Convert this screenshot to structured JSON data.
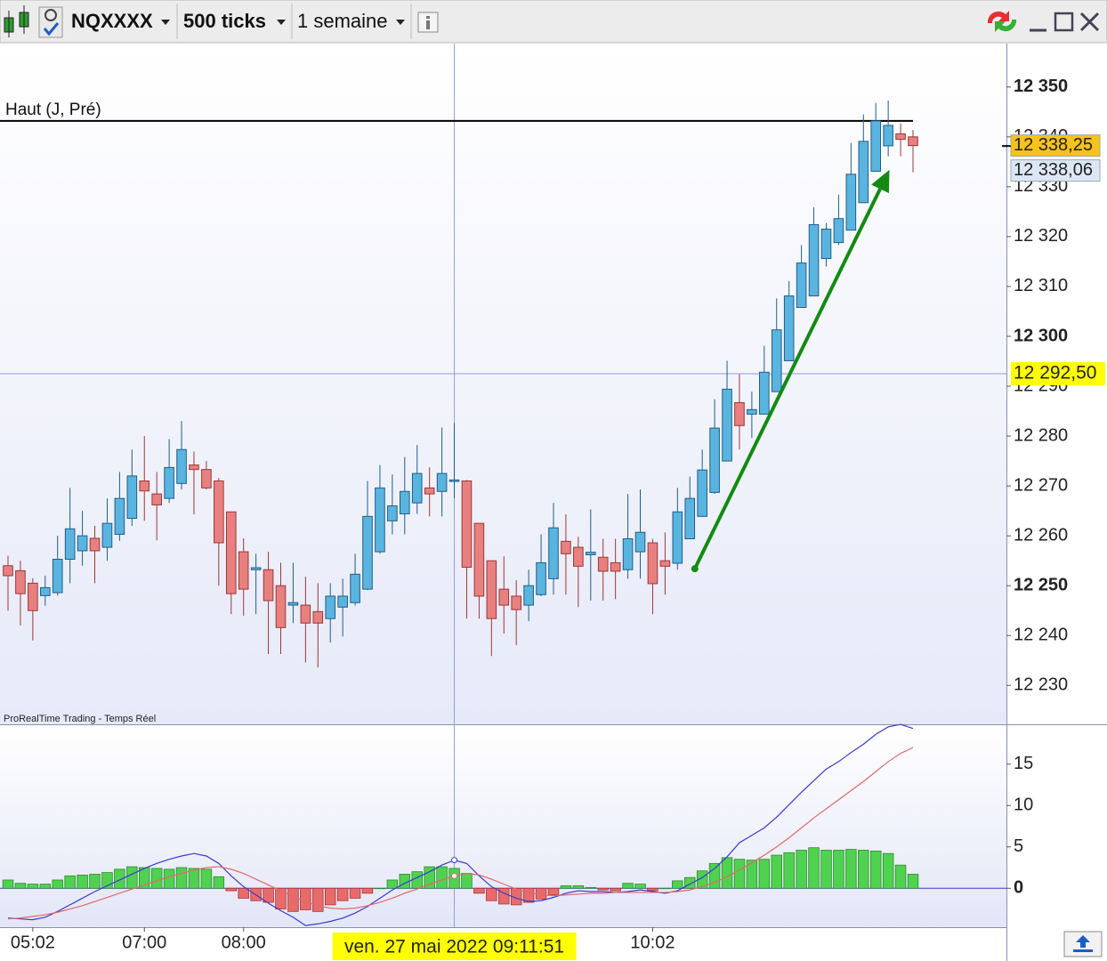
{
  "toolbar": {
    "instrument": "NQXXXX",
    "ticks": "500 ticks",
    "period": "1 semaine"
  },
  "chart_data": [
    {
      "type": "candlestick",
      "source_label": "ProRealTime Trading - Temps Réel",
      "categories": [
        null,
        null,
        "05:02",
        null,
        null,
        null,
        null,
        null,
        null,
        null,
        null,
        "07:00",
        null,
        null,
        null,
        null,
        null,
        null,
        null,
        "08:00",
        null,
        null,
        null,
        null,
        null,
        null,
        null,
        null,
        null,
        null,
        null,
        null,
        null,
        null,
        null,
        null,
        null,
        null,
        null,
        null,
        null,
        null,
        null,
        null,
        null,
        null,
        null,
        null,
        null,
        null,
        null,
        null,
        "10:02",
        null,
        null,
        null,
        null,
        null,
        null,
        null,
        null,
        null,
        null,
        null,
        null,
        null,
        null,
        null,
        null,
        null,
        null,
        null,
        null,
        null
      ],
      "open": [
        12254,
        12253,
        12250.5,
        12248,
        12248.6,
        12255.3,
        12257,
        12259.5,
        12257.7,
        12260.3,
        12263.5,
        12271,
        12268.4,
        12267.5,
        12270.5,
        12274.2,
        12273.3,
        12271,
        12264.8,
        12256.8,
        12253.2,
        12253.2,
        12250,
        12246.1,
        12246.1,
        12244.8,
        12243.4,
        12245.7,
        12246.6,
        12249.3,
        12256.8,
        12263,
        12264.4,
        12266.6,
        12269.6,
        12268.9,
        12270.9,
        12271,
        12262.5,
        12255,
        12249.3,
        12247.9,
        12246.1,
        12248.2,
        12251.4,
        12258.9,
        12257.7,
        12256.2,
        12255.7,
        12254.6,
        12253.2,
        12256.8,
        12258.6,
        12255,
        12254.5,
        12259.4,
        12263.9,
        12268.7,
        12275,
        12286.7,
        12284.4,
        12284.4,
        12288.9,
        12295.1,
        12305.8,
        12308.1,
        12315.6,
        12318.8,
        12321.3,
        12326.8,
        12333.1,
        12338.2,
        12340.6,
        12340
      ],
      "high": [
        12256,
        12255,
        12251.5,
        12252,
        12260,
        12269.6,
        12265,
        12262,
        12267.5,
        12272.8,
        12277.3,
        12280,
        12272.8,
        12279.4,
        12283,
        12276.9,
        12275,
        12271.6,
        12264.8,
        12259.5,
        12256.4,
        12256.8,
        12254.6,
        12254.6,
        12251.8,
        12250.5,
        12250.5,
        12251.4,
        12256.4,
        12271,
        12274.2,
        12272.3,
        12275.8,
        12278.2,
        12273.7,
        12281.7,
        12282.6,
        12271.2,
        12262.5,
        12255,
        12255.9,
        12251.1,
        12253.2,
        12260.3,
        12266.6,
        12264.3,
        12259.8,
        12265.3,
        12259.4,
        12259.4,
        12268.4,
        12269.3,
        12259.4,
        12260.7,
        12269.6,
        12271.9,
        12277.3,
        12287.4,
        12295.1,
        12292.4,
        12288.9,
        12298.1,
        12307.6,
        12311.1,
        12318.3,
        12325.9,
        12322.7,
        12328.4,
        12338.8,
        12344.5,
        12346.8,
        12347.3,
        12342.7,
        12341.4
      ],
      "low": [
        12245,
        12242,
        12239,
        12246,
        12248,
        12250.5,
        12254,
        12250.5,
        12255,
        12259,
        12262,
        12263,
        12259.1,
        12266.6,
        12269.3,
        12264.3,
        12269.3,
        12250,
        12244.3,
        12244,
        12244.3,
        12236.3,
        12236.3,
        12242.5,
        12234.6,
        12233.6,
        12238.6,
        12239.8,
        12246,
        12249.1,
        12256.4,
        12260.3,
        12260.3,
        12264.4,
        12263.9,
        12263.9,
        12267.5,
        12243.4,
        12243.4,
        12235.9,
        12240.4,
        12238.1,
        12242.9,
        12247.9,
        12248.2,
        12248.2,
        12245.7,
        12247,
        12247,
        12247.3,
        12251.4,
        12251.4,
        12244.3,
        12248.2,
        12253.2,
        12259.4,
        12263.9,
        12268.4,
        12275,
        12277.3,
        12279.6,
        12284.4,
        12288.9,
        12295.1,
        12305.8,
        12308.1,
        12314,
        12318.3,
        12321.3,
        12326.8,
        12333.1,
        12336.1,
        12336.1,
        12332.9
      ],
      "close": [
        12252,
        12248.4,
        12245,
        12249.6,
        12255.3,
        12261.4,
        12260,
        12257,
        12262.5,
        12267.5,
        12272,
        12269,
        12266.2,
        12273.7,
        12277.3,
        12273.3,
        12269.6,
        12258.6,
        12248.4,
        12249.3,
        12253.6,
        12247,
        12241.6,
        12246.6,
        12242.5,
        12242.5,
        12247.9,
        12247.9,
        12252.3,
        12263.9,
        12269.6,
        12266,
        12268.9,
        12272.5,
        12268.4,
        12272.5,
        12271.2,
        12253.7,
        12247.9,
        12243.4,
        12246.1,
        12245.2,
        12250,
        12254.6,
        12261.6,
        12256.4,
        12253.9,
        12256.7,
        12252.9,
        12252.9,
        12259.4,
        12260.7,
        12250.4,
        12253.9,
        12264.8,
        12267.5,
        12273.2,
        12281.6,
        12289.4,
        12282.1,
        12285.3,
        12292.8,
        12301.3,
        12308.1,
        12314.7,
        12322.4,
        12321.5,
        12323.6,
        12332.5,
        12339.1,
        12343.2,
        12342.3,
        12339.5,
        12338.25
      ],
      "up_color": "#5ab4e0",
      "down_color": "#e88080",
      "ylim": [
        12222.2,
        12358.7
      ],
      "yticks": [
        {
          "value": 12230,
          "label": "12 230"
        },
        {
          "value": 12240,
          "label": "12 240"
        },
        {
          "value": 12250,
          "label": "12 250"
        },
        {
          "value": 12260,
          "label": "12 260"
        },
        {
          "value": 12270,
          "label": "12 270"
        },
        {
          "value": 12280,
          "label": "12 280"
        },
        {
          "value": 12290,
          "label": "12 290"
        },
        {
          "value": 12300,
          "label": "12 300"
        },
        {
          "value": 12310,
          "label": "12 310"
        },
        {
          "value": 12320,
          "label": "12 320"
        },
        {
          "value": 12330,
          "label": "12 330"
        },
        {
          "value": 12340,
          "label": "12 340"
        },
        {
          "value": 12350,
          "label": "12 350"
        }
      ],
      "level_line": {
        "label": "Haut (J, Pré)",
        "value": 12343.2
      },
      "price_tags": [
        {
          "value": 12338.25,
          "label": "12 338,25",
          "color": "#f7c21c"
        },
        {
          "value": 12338.06,
          "label": "12 338,06",
          "color": "#dde6f5"
        }
      ],
      "crosshair": {
        "value": 12292.5,
        "label": "12 292,50",
        "time_label": "ven. 27 mai 2022 09:11:51",
        "index": 36
      },
      "arrow": {
        "x": [
          55.4,
          71.1
        ],
        "y": [
          12253.4,
          12333.4
        ],
        "color": "#138a13"
      }
    },
    {
      "type": "combo",
      "ylim": [
        -4.7,
        19.7
      ],
      "yticks": [
        0,
        5,
        10,
        15
      ],
      "series": [
        {
          "type": "bar",
          "pos_color": "#4fd24f",
          "neg_color": "#e86b6b",
          "values": [
            1.0,
            0.6,
            0.5,
            0.5,
            1,
            1.5,
            1.6,
            1.7,
            1.9,
            2.3,
            2.6,
            2.5,
            2.4,
            2.3,
            2.5,
            2.4,
            2.3,
            1.4,
            -0.3,
            -1.2,
            -1.5,
            -1.7,
            -2.5,
            -2.8,
            -2.6,
            -2.8,
            -2,
            -1.5,
            -1.2,
            -0.6,
            0,
            1,
            1.7,
            2,
            2.6,
            2.6,
            2.4,
            1.8,
            -0.6,
            -1.5,
            -1.9,
            -2,
            -1.7,
            -1.3,
            -0.8,
            0.3,
            0.3,
            0.1,
            -0.2,
            -0.3,
            0.6,
            0.5,
            -0.3,
            0,
            0.9,
            1.3,
            2.1,
            3.0,
            3.7,
            3.5,
            3.4,
            3.5,
            4,
            4.3,
            4.6,
            4.9,
            4.6,
            4.6,
            4.7,
            4.6,
            4.5,
            4.2,
            2.8,
            1.7
          ]
        },
        {
          "type": "line",
          "color": "#3a3ad0",
          "values": [
            -3.6,
            -3.7,
            -3.8,
            -3.5,
            -2.8,
            -2.0,
            -1.2,
            -0.4,
            0.3,
            1.0,
            1.7,
            2.4,
            3.0,
            3.5,
            3.9,
            4.2,
            3.9,
            3.0,
            1.5,
            0.2,
            -0.8,
            -1.8,
            -2.7,
            -3.5,
            -4.5,
            -4.3,
            -4.0,
            -3.6,
            -3.0,
            -2.2,
            -1.2,
            -0.2,
            0.6,
            1.3,
            2.0,
            2.8,
            3.4,
            3.0,
            1.5,
            0.2,
            -0.6,
            -1.2,
            -1.6,
            -1.5,
            -1.1,
            -0.6,
            -0.3,
            -0.4,
            -0.4,
            -0.5,
            -0.4,
            -0.2,
            -0.4,
            -0.6,
            -0.3,
            0.5,
            1.3,
            2.4,
            3.8,
            5.5,
            6.4,
            7.3,
            8.6,
            10.1,
            11.6,
            13.0,
            14.4,
            15.3,
            16.4,
            17.4,
            18.6,
            19.5,
            19.8,
            19.3
          ]
        },
        {
          "type": "line",
          "color": "#e06a6a",
          "values": [
            -3.7,
            -3.6,
            -3.4,
            -3.2,
            -2.9,
            -2.5,
            -2.1,
            -1.6,
            -1.1,
            -0.6,
            -0.1,
            0.4,
            0.9,
            1.4,
            1.8,
            2.2,
            2.5,
            2.6,
            2.3,
            1.8,
            1.1,
            0.4,
            -0.3,
            -1.0,
            -1.6,
            -2.1,
            -2.4,
            -2.5,
            -2.4,
            -2.1,
            -1.7,
            -1.2,
            -0.6,
            -0.1,
            0.5,
            1.0,
            1.5,
            1.8,
            1.6,
            1.1,
            0.5,
            -0.1,
            -0.5,
            -0.8,
            -0.9,
            -0.8,
            -0.7,
            -0.6,
            -0.6,
            -0.5,
            -0.5,
            -0.5,
            -0.5,
            -0.5,
            -0.4,
            -0.2,
            0.2,
            0.7,
            1.4,
            2.2,
            3.1,
            4.0,
            5.0,
            6.1,
            7.3,
            8.5,
            9.6,
            10.7,
            11.8,
            12.9,
            14.1,
            15.3,
            16.3,
            17.0
          ]
        }
      ]
    }
  ]
}
